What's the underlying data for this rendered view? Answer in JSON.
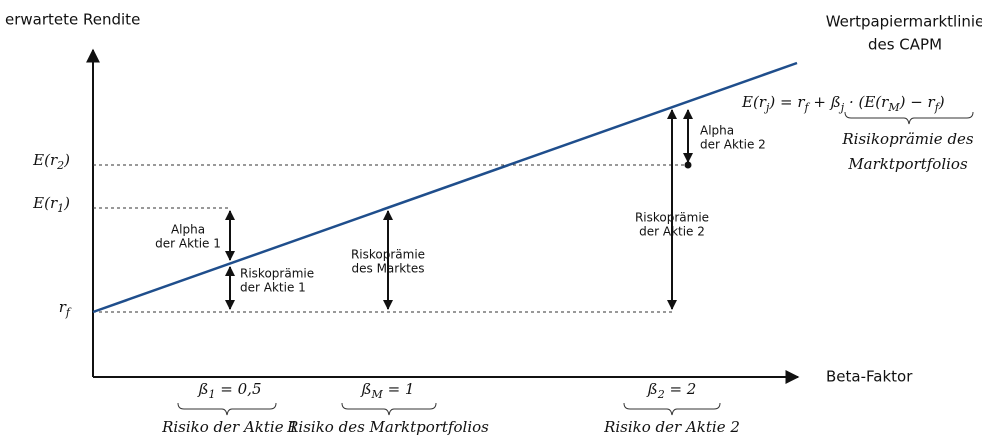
{
  "y_axis_label": "erwartete Rendite",
  "x_axis_label": "Beta-Faktor",
  "line_label": [
    "Wertpapiermarktlinie",
    "des CAPM"
  ],
  "formula": {
    "parts": [
      {
        "t": "E(r"
      },
      {
        "t": "j",
        "sub": true
      },
      {
        "t": ") = r"
      },
      {
        "t": "f",
        "sub": true
      },
      {
        "t": " + ß"
      },
      {
        "t": "j",
        "sub": true
      },
      {
        "t": " · (E(r"
      },
      {
        "t": "M",
        "sub": true
      },
      {
        "t": ") − r"
      },
      {
        "t": "f",
        "sub": true
      },
      {
        "t": ")"
      }
    ],
    "brace_label": [
      "Risikoprämie des",
      "Marktportfolios"
    ]
  },
  "y_labels": [
    {
      "parts": [
        {
          "t": "E(r"
        },
        {
          "t": "2",
          "sub": true
        },
        {
          "t": ")"
        }
      ]
    },
    {
      "parts": [
        {
          "t": "E(r"
        },
        {
          "t": "1",
          "sub": true
        },
        {
          "t": ")"
        }
      ]
    },
    {
      "parts": [
        {
          "t": "r"
        },
        {
          "t": "f",
          "sub": true
        }
      ]
    }
  ],
  "betas": [
    {
      "parts": [
        {
          "t": "ß"
        },
        {
          "t": "1",
          "sub": true
        },
        {
          "t": " = 0,5"
        }
      ],
      "caption": "Risiko der Aktie 1"
    },
    {
      "parts": [
        {
          "t": "ß"
        },
        {
          "t": "M",
          "sub": true
        },
        {
          "t": " = 1"
        }
      ],
      "caption": "Risiko des Marktportfolios"
    },
    {
      "parts": [
        {
          "t": "ß"
        },
        {
          "t": "2",
          "sub": true
        },
        {
          "t": " = 2"
        }
      ],
      "caption": "Risiko der Aktie 2"
    }
  ],
  "annotations": [
    [
      "Alpha",
      "der Aktie 1"
    ],
    [
      "Riskoprämie",
      "der Aktie 1"
    ],
    [
      "Riskoprämie",
      "des Marktes"
    ],
    [
      "Alpha",
      "der Aktie 2"
    ],
    [
      "Riskoprämie",
      "der Aktie 2"
    ]
  ]
}
